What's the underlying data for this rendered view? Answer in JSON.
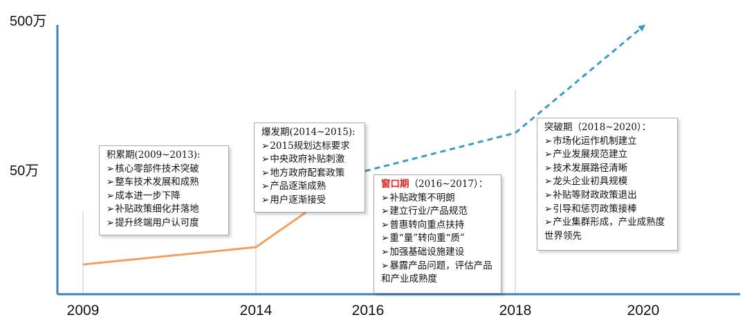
{
  "chart_data": {
    "type": "line",
    "title": "",
    "xlabel": "",
    "ylabel": "",
    "x_ticks": [
      "2009",
      "2014",
      "2016",
      "2018",
      "2020"
    ],
    "y_ticks": [
      "50万",
      "500万"
    ],
    "series": [
      {
        "style": "solid",
        "color": "#f0a060",
        "points": [
          [
            2009,
            8
          ],
          [
            2014,
            13
          ],
          [
            2016,
            50
          ]
        ]
      },
      {
        "style": "dashed-arrow",
        "color": "#3a9cc4",
        "points": [
          [
            2016,
            50
          ],
          [
            2018,
            91
          ],
          [
            2020,
            500
          ]
        ]
      }
    ]
  },
  "phases": [
    {
      "title": "积累期(2009~2013):",
      "items": [
        "核心零部件技术突破",
        "整车技术发展和成熟",
        "成本进一步下降",
        "补贴政策细化并落地",
        "提升终端用户认可度"
      ]
    },
    {
      "title": "爆发期(2014~2015):",
      "items": [
        "2015规划达标要求",
        "中央政府补贴刺激",
        "地方政府配套政策",
        "产品逐渐成熟",
        "用户逐渐接受"
      ]
    },
    {
      "title_highlight": "窗口期",
      "title_rest": "（2016~2017）：",
      "items": [
        "补贴政策不明朗",
        "建立行业/产品规范",
        "普惠转向重点扶持",
        "重“量”转向重“质”",
        "加强基础设施建设",
        "暴露产品问题，评估产品和产业成熟度"
      ]
    },
    {
      "title": "突破期（2018~2020）：",
      "items": [
        "市场化运作机制建立",
        "产业发展规范建立",
        "技术发展路径清晰",
        "龙头企业初具规模",
        "补贴等财政政策退出",
        "引导和惩罚政策接棒",
        "产业集群形成，产业成熟度世界领先"
      ]
    }
  ]
}
